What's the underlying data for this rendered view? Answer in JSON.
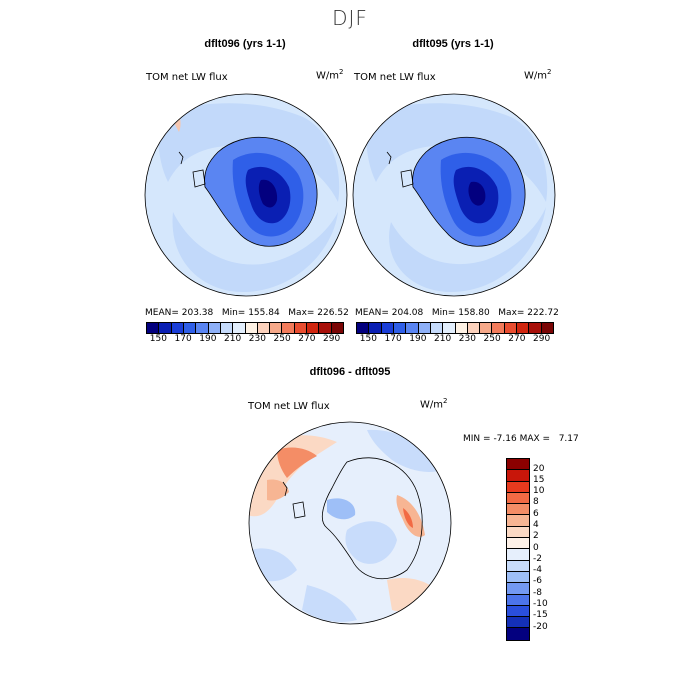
{
  "page_title": "DJF",
  "panels": [
    {
      "title": "dflt096 (yrs 1-1)",
      "variable": "TOM net LW flux",
      "units_main": "W/m",
      "units_exp": "2",
      "stats": {
        "mean": "MEAN= 203.38",
        "min": "Min= 155.84",
        "max": "Max= 226.52"
      }
    },
    {
      "title": "dflt095 (yrs 1-1)",
      "variable": "TOM net LW flux",
      "units_main": "W/m",
      "units_exp": "2",
      "stats": {
        "mean": "MEAN= 204.08",
        "min": "Min= 158.80",
        "max": "Max= 222.72"
      }
    }
  ],
  "colorbar_top": {
    "ticks": [
      "150",
      "170",
      "190",
      "210",
      "230",
      "250",
      "270",
      "290"
    ],
    "colors": [
      "#03007f",
      "#0a1fb3",
      "#1a3ed8",
      "#2f5fe8",
      "#5a85f2",
      "#8eb0f7",
      "#c6dbfb",
      "#e2eefc",
      "#fdf1e4",
      "#fbd1bc",
      "#f6a98a",
      "#f27b5b",
      "#e94d30",
      "#d1260f",
      "#a8100a",
      "#7a0505"
    ]
  },
  "diff_panel": {
    "title": "dflt096 - dflt095",
    "variable": "TOM net LW flux",
    "units_main": "W/m",
    "units_exp": "2",
    "min_label": "MIN =",
    "min_value": "-7.16",
    "max_label": "MAX =",
    "max_value": "7.17"
  },
  "colorbar_diff": {
    "labels": [
      "20",
      "15",
      "10",
      "8",
      "6",
      "4",
      "2",
      "0",
      "-2",
      "-4",
      "-6",
      "-8",
      "-10",
      "-15",
      "-20"
    ],
    "colors": [
      "#8b0000",
      "#c8160a",
      "#e83a1e",
      "#f26a44",
      "#f48d66",
      "#f7b593",
      "#fbd9c4",
      "#fdf1e8",
      "#e6effc",
      "#c8dcfb",
      "#9ebff7",
      "#7399f2",
      "#4c74ea",
      "#2a4fdc",
      "#1430b8",
      "#03007f"
    ]
  }
}
